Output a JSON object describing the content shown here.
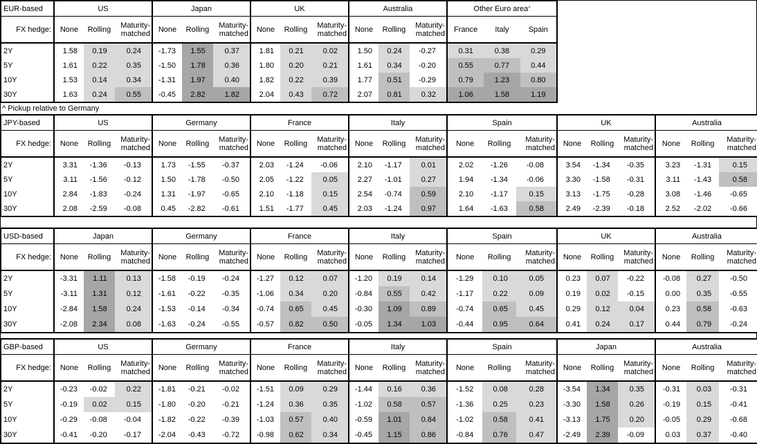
{
  "footnote": "^ Pickup relative to Germany",
  "fx_hedge_label": "FX hedge:",
  "row_labels": [
    "2Y",
    "5Y",
    "10Y",
    "30Y"
  ],
  "col_headers": {
    "none": "None",
    "rolling": "Rolling",
    "maturity": "Maturity-\nmatched"
  },
  "shade_colors": {
    "low": "#d9d9d9",
    "mid": "#bfbfbf",
    "high": "#a6a6a6"
  },
  "shade_rule": {
    "low_min": 0,
    "mid_min": 0.5,
    "high_min": 1.0,
    "unshaded_columns": [
      "None"
    ]
  },
  "tables": [
    {
      "label": "EUR-based",
      "groups": [
        {
          "name": "US",
          "rows": [
            [
              "1.58",
              "0.19",
              "0.24"
            ],
            [
              "1.61",
              "0.22",
              "0.35"
            ],
            [
              "1.53",
              "0.14",
              "0.34"
            ],
            [
              "1.63",
              "0.24",
              "0.55"
            ]
          ]
        },
        {
          "name": "Japan",
          "rows": [
            [
              "-1.73",
              "1.55",
              "0.37"
            ],
            [
              "-1.50",
              "1.78",
              "0.36"
            ],
            [
              "-1.31",
              "1.97",
              "0.40"
            ],
            [
              "-0.45",
              "2.82",
              "1.82"
            ]
          ]
        },
        {
          "name": "UK",
          "rows": [
            [
              "1.81",
              "0.21",
              "0.02"
            ],
            [
              "1.80",
              "0.20",
              "0.21"
            ],
            [
              "1.82",
              "0.22",
              "0.39"
            ],
            [
              "2.04",
              "0.43",
              "0.72"
            ]
          ]
        },
        {
          "name": "Australia",
          "rows": [
            [
              "1.50",
              "0.24",
              "-0.27"
            ],
            [
              "1.61",
              "0.34",
              "-0.20"
            ],
            [
              "1.77",
              "0.51",
              "-0.29"
            ],
            [
              "2.07",
              "0.81",
              "0.32"
            ]
          ]
        },
        {
          "name": "Other Euro area",
          "sup": "^",
          "cols": [
            "France",
            "Italy",
            "Spain"
          ],
          "rows": [
            [
              "0.31",
              "0.38",
              "0.29"
            ],
            [
              "0.55",
              "0.77",
              "0.44"
            ],
            [
              "0.79",
              "1.23",
              "0.80"
            ],
            [
              "1.06",
              "1.58",
              "1.19"
            ]
          ]
        }
      ]
    },
    {
      "label": "JPY-based",
      "groups": [
        {
          "name": "US",
          "rows": [
            [
              "3.31",
              "-1.36",
              "-0.13"
            ],
            [
              "3.11",
              "-1.56",
              "-0.12"
            ],
            [
              "2.84",
              "-1.83",
              "-0.24"
            ],
            [
              "2.08",
              "-2.59",
              "-0.08"
            ]
          ]
        },
        {
          "name": "Germany",
          "rows": [
            [
              "1.73",
              "-1.55",
              "-0.37"
            ],
            [
              "1.50",
              "-1.78",
              "-0.50"
            ],
            [
              "1.31",
              "-1.97",
              "-0.65"
            ],
            [
              "0.45",
              "-2.82",
              "-0.61"
            ]
          ]
        },
        {
          "name": "France",
          "rows": [
            [
              "2.03",
              "-1.24",
              "-0.06"
            ],
            [
              "2.05",
              "-1.22",
              "0.05"
            ],
            [
              "2.10",
              "-1.18",
              "0.15"
            ],
            [
              "1.51",
              "-1.77",
              "0.45"
            ]
          ]
        },
        {
          "name": "Italy",
          "rows": [
            [
              "2.10",
              "-1.17",
              "0.01"
            ],
            [
              "2.27",
              "-1.01",
              "0.27"
            ],
            [
              "2.54",
              "-0.74",
              "0.59"
            ],
            [
              "2.03",
              "-1.24",
              "0.97"
            ]
          ]
        },
        {
          "name": "Spain",
          "rows": [
            [
              "2.02",
              "-1.26",
              "-0.08"
            ],
            [
              "1.94",
              "-1.34",
              "-0.06"
            ],
            [
              "2.10",
              "-1.17",
              "0.15"
            ],
            [
              "1.64",
              "-1.63",
              "0.58"
            ]
          ]
        },
        {
          "name": "UK",
          "rows": [
            [
              "3.54",
              "-1.34",
              "-0.35"
            ],
            [
              "3.30",
              "-1.58",
              "-0.31"
            ],
            [
              "3.13",
              "-1.75",
              "-0.28"
            ],
            [
              "2.49",
              "-2.39",
              "-0.18"
            ]
          ]
        },
        {
          "name": "Australia",
          "rows": [
            [
              "3.23",
              "-1.31",
              "0.15"
            ],
            [
              "3.11",
              "-1.43",
              "0.58"
            ],
            [
              "3.08",
              "-1.46",
              "-0.65"
            ],
            [
              "2.52",
              "-2.02",
              "-0.66"
            ]
          ]
        }
      ]
    },
    {
      "label": "USD-based",
      "groups": [
        {
          "name": "Japan",
          "rows": [
            [
              "-3.31",
              "1.11",
              "0.13"
            ],
            [
              "-3.11",
              "1.31",
              "0.12"
            ],
            [
              "-2.84",
              "1.58",
              "0.24"
            ],
            [
              "-2.08",
              "2.34",
              "0.08"
            ]
          ]
        },
        {
          "name": "Germany",
          "rows": [
            [
              "-1.58",
              "-0.19",
              "-0.24"
            ],
            [
              "-1.61",
              "-0.22",
              "-0.35"
            ],
            [
              "-1.53",
              "-0.14",
              "-0.34"
            ],
            [
              "-1.63",
              "-0.24",
              "-0.55"
            ]
          ]
        },
        {
          "name": "France",
          "rows": [
            [
              "-1.27",
              "0.12",
              "0.07"
            ],
            [
              "-1.06",
              "0.34",
              "0.20"
            ],
            [
              "-0.74",
              "0.65",
              "0.45"
            ],
            [
              "-0.57",
              "0.82",
              "0.50"
            ]
          ]
        },
        {
          "name": "Italy",
          "rows": [
            [
              "-1.20",
              "0.19",
              "0.14"
            ],
            [
              "-0.84",
              "0.55",
              "0.42"
            ],
            [
              "-0.30",
              "1.09",
              "0.89"
            ],
            [
              "-0.05",
              "1.34",
              "1.03"
            ]
          ]
        },
        {
          "name": "Spain",
          "rows": [
            [
              "-1.29",
              "0.10",
              "0.05"
            ],
            [
              "-1.17",
              "0.22",
              "0.09"
            ],
            [
              "-0.74",
              "0.65",
              "0.45"
            ],
            [
              "-0.44",
              "0.95",
              "0.64"
            ]
          ]
        },
        {
          "name": "UK",
          "rows": [
            [
              "0.23",
              "0.07",
              "-0.22"
            ],
            [
              "0.19",
              "0.02",
              "-0.15"
            ],
            [
              "0.29",
              "0.12",
              "0.04"
            ],
            [
              "0.41",
              "0.24",
              "0.17"
            ]
          ]
        },
        {
          "name": "Australia",
          "rows": [
            [
              "-0.08",
              "0.27",
              "-0.50"
            ],
            [
              "0.00",
              "0.35",
              "-0.55"
            ],
            [
              "0.23",
              "0.58",
              "-0.63"
            ],
            [
              "0.44",
              "0.79",
              "-0.24"
            ]
          ]
        }
      ]
    },
    {
      "label": "GBP-based",
      "groups": [
        {
          "name": "US",
          "rows": [
            [
              "-0.23",
              "-0.02",
              "0.22"
            ],
            [
              "-0.19",
              "0.02",
              "0.15"
            ],
            [
              "-0.29",
              "-0.08",
              "-0.04"
            ],
            [
              "-0.41",
              "-0.20",
              "-0.17"
            ]
          ]
        },
        {
          "name": "Germany",
          "rows": [
            [
              "-1.81",
              "-0.21",
              "-0.02"
            ],
            [
              "-1.80",
              "-0.20",
              "-0.21"
            ],
            [
              "-1.82",
              "-0.22",
              "-0.39"
            ],
            [
              "-2.04",
              "-0.43",
              "-0.72"
            ]
          ]
        },
        {
          "name": "France",
          "rows": [
            [
              "-1.51",
              "0.09",
              "0.29"
            ],
            [
              "-1.24",
              "0.36",
              "0.35"
            ],
            [
              "-1.03",
              "0.57",
              "0.40"
            ],
            [
              "-0.98",
              "0.62",
              "0.34"
            ]
          ]
        },
        {
          "name": "Italy",
          "rows": [
            [
              "-1.44",
              "0.16",
              "0.36"
            ],
            [
              "-1.02",
              "0.58",
              "0.57"
            ],
            [
              "-0.59",
              "1.01",
              "0.84"
            ],
            [
              "-0.45",
              "1.15",
              "0.86"
            ]
          ]
        },
        {
          "name": "Spain",
          "rows": [
            [
              "-1.52",
              "0.08",
              "0.28"
            ],
            [
              "-1.36",
              "0.25",
              "0.23"
            ],
            [
              "-1.02",
              "0.58",
              "0.41"
            ],
            [
              "-0.84",
              "0.76",
              "0.47"
            ]
          ]
        },
        {
          "name": "Japan",
          "rows": [
            [
              "-3.54",
              "1.34",
              "0.35"
            ],
            [
              "-3.30",
              "1.58",
              "0.26"
            ],
            [
              "-3.13",
              "1.75",
              "0.20"
            ],
            [
              "-2.49",
              "2.39",
              "-0.09"
            ]
          ]
        },
        {
          "name": "Australia",
          "rows": [
            [
              "-0.31",
              "0.03",
              "-0.31"
            ],
            [
              "-0.19",
              "0.15",
              "-0.41"
            ],
            [
              "-0.05",
              "0.29",
              "-0.68"
            ],
            [
              "0.03",
              "0.37",
              "-0.40"
            ]
          ]
        }
      ]
    }
  ]
}
